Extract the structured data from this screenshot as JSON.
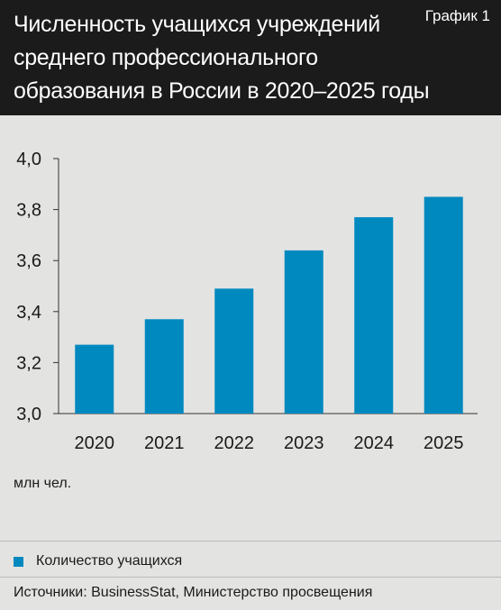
{
  "header": {
    "title": "Численность учащихся учреждений среднего профессионального образования в России в 2020–2025 годы",
    "tag": "График 1"
  },
  "chart_data": {
    "type": "bar",
    "categories": [
      "2020",
      "2021",
      "2022",
      "2023",
      "2024",
      "2025"
    ],
    "series": [
      {
        "name": "Количество учащихся",
        "values": [
          3.27,
          3.37,
          3.49,
          3.64,
          3.77,
          3.85
        ]
      }
    ],
    "ylim": [
      3.0,
      4.0
    ],
    "yticks": [
      "3,0",
      "3,2",
      "3,4",
      "3,6",
      "3,8",
      "4,0"
    ],
    "unit": "млн чел.",
    "legend_position": "bottom",
    "grid": false,
    "bar_color": "#0089bf"
  },
  "legend": {
    "label": "Количество учащихся"
  },
  "sources": "Источники:  BusinessStat, Министерство просвещения"
}
